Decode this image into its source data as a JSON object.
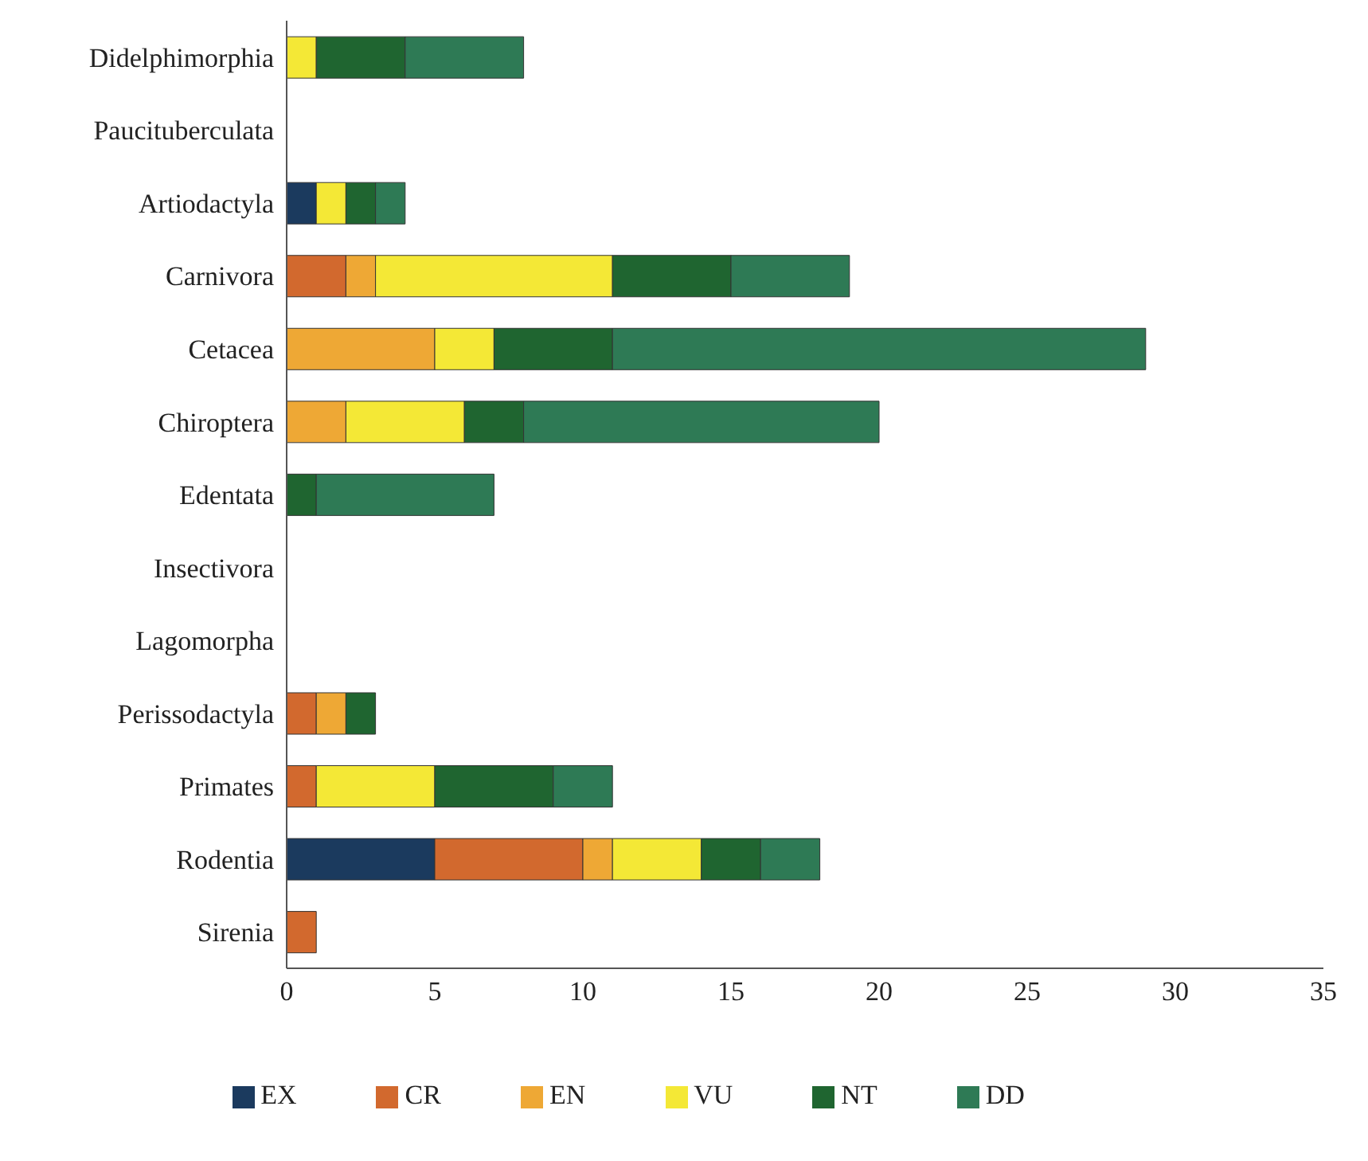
{
  "chart_data": {
    "type": "bar",
    "orientation": "horizontal",
    "stacked": true,
    "categories": [
      "Didelphimorphia",
      "Paucituberculata",
      "Artiodactyla",
      "Carnivora",
      "Cetacea",
      "Chiroptera",
      "Edentata",
      "Insectivora",
      "Lagomorpha",
      "Perissodactyla",
      "Primates",
      "Rodentia",
      "Sirenia"
    ],
    "series": [
      {
        "name": "EX",
        "color": "#1b3a5e",
        "values": [
          null,
          null,
          1,
          null,
          null,
          null,
          null,
          null,
          null,
          null,
          null,
          5,
          null
        ]
      },
      {
        "name": "CR",
        "color": "#d2692e",
        "values": [
          null,
          null,
          null,
          2,
          null,
          null,
          null,
          null,
          null,
          1,
          1,
          5,
          1
        ]
      },
      {
        "name": "EN",
        "color": "#eea835",
        "values": [
          null,
          null,
          null,
          1,
          5,
          2,
          null,
          null,
          null,
          1,
          null,
          1,
          null
        ]
      },
      {
        "name": "VU",
        "color": "#f4e836",
        "values": [
          1,
          null,
          1,
          8,
          2,
          4,
          null,
          null,
          null,
          null,
          4,
          3,
          null
        ]
      },
      {
        "name": "NT",
        "color": "#1f6530",
        "values": [
          3,
          null,
          1,
          4,
          4,
          2,
          1,
          null,
          null,
          1,
          4,
          2,
          null
        ]
      },
      {
        "name": "DD",
        "color": "#2e7a55",
        "values": [
          4,
          null,
          1,
          4,
          18,
          12,
          6,
          null,
          null,
          null,
          2,
          2,
          null
        ]
      }
    ],
    "xlim": [
      0,
      35
    ],
    "xticks": [
      0,
      5,
      10,
      15,
      20,
      25,
      30,
      35
    ],
    "grid": false,
    "legend": "bottom"
  }
}
